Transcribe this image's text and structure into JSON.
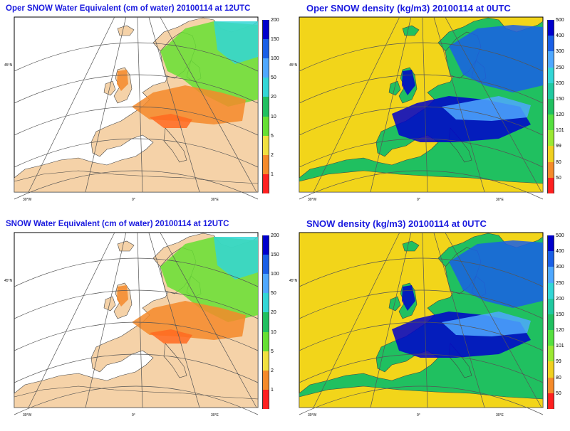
{
  "panels": [
    {
      "title": "Oper SNOW Water Equivalent (cm of water) 20100114 at 12UTC",
      "kind": "swe"
    },
    {
      "title": "Oper SNOW density (kg/m3)  20100114 at 0UTC",
      "kind": "dens"
    },
    {
      "title": "SNOW Water Equivalent (cm of water) 20100114 at 12UTC",
      "kind": "swe"
    },
    {
      "title": "SNOW density (kg/m3)  20100114 at 0UTC",
      "kind": "dens"
    }
  ],
  "swe_scale": {
    "ticks": [
      "200",
      "150",
      "100",
      "50",
      "20",
      "10",
      "5",
      "2",
      "1"
    ],
    "colors": [
      "#0000cc",
      "#1a5fe6",
      "#4fa8ff",
      "#33d6d6",
      "#20c060",
      "#66e033",
      "#f0e040",
      "#f58a2a",
      "#ff2020"
    ]
  },
  "density_scale": {
    "ticks": [
      "500",
      "400",
      "300",
      "250",
      "200",
      "150",
      "120",
      "101",
      "99",
      "80",
      "50"
    ],
    "colors": [
      "#0000cc",
      "#1a5fe6",
      "#4fa8ff",
      "#33d6d6",
      "#20c9a0",
      "#20c060",
      "#55e040",
      "#9be833",
      "#f0d020",
      "#f58a2a",
      "#ff2020"
    ]
  },
  "colors": {
    "title": "#1a1adf",
    "land": "#f5d2a8",
    "sea_density": "#f2d51a",
    "grid": "#555555"
  },
  "axis_labels": {
    "left_lat": "45°N",
    "bottom": [
      "30°W",
      "0°",
      "30°E"
    ]
  }
}
